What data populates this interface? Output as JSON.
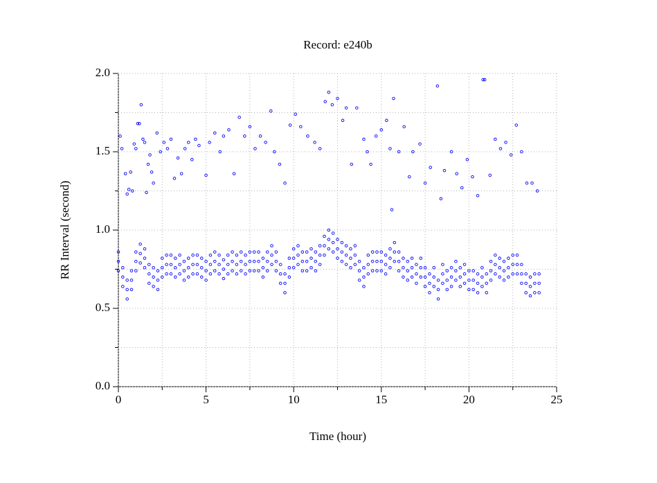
{
  "chart_data": {
    "type": "scatter",
    "title": "Record:  e240b",
    "xlabel": "Time (hour)",
    "ylabel": "RR Interval (second)",
    "xlim": [
      0,
      25
    ],
    "ylim": [
      0,
      2
    ],
    "xticks": [
      0,
      5,
      10,
      15,
      20,
      25
    ],
    "x_minor_ticks": [
      2.5,
      7.5,
      12.5,
      17.5,
      22.5
    ],
    "yticks": [
      {
        "value": 0,
        "label": "0.0"
      },
      {
        "value": 0.5,
        "label": "0.5"
      },
      {
        "value": 1,
        "label": "1.0"
      },
      {
        "value": 1.5,
        "label": "1.5"
      },
      {
        "value": 2,
        "label": "2.0"
      }
    ],
    "y_minor_ticks": [
      0.25,
      0.75,
      1.25,
      1.75
    ],
    "grid": true,
    "x": [
      0,
      0.25,
      0.5,
      0.75,
      1,
      1.25,
      1.5,
      1.75,
      2,
      2.25,
      2.5,
      2.75,
      3,
      3.25,
      3.5,
      3.75,
      4,
      4.25,
      4.5,
      4.75,
      5,
      5.25,
      5.5,
      5.75,
      6,
      6.25,
      6.5,
      6.75,
      7,
      7.25,
      7.5,
      7.75,
      8,
      8.25,
      8.5,
      8.75,
      9,
      9.25,
      9.5,
      9.75,
      10,
      10.25,
      10.5,
      10.75,
      11,
      11.25,
      11.5,
      11.75,
      12,
      12.25,
      12.5,
      12.75,
      13,
      13.25,
      13.5,
      13.75,
      14,
      14.25,
      14.5,
      14.75,
      15,
      15.25,
      15.5,
      15.75,
      16,
      16.25,
      16.5,
      16.75,
      17,
      17.25,
      17.5,
      17.75,
      18,
      18.25,
      18.5,
      18.75,
      19,
      19.25,
      19.5,
      19.75,
      20,
      20.25,
      20.5,
      20.75,
      21,
      21.25,
      21.5,
      21.75,
      22,
      22.25,
      22.5,
      22.75,
      23,
      23.25,
      23.5,
      23.75,
      24
    ],
    "series": [
      {
        "color": "#0000ff",
        "values": [
          0.86,
          0.76,
          0.68,
          0.74,
          0.86,
          0.91,
          0.88,
          0.78,
          0.76,
          0.74,
          0.82,
          0.84,
          0.84,
          0.82,
          0.84,
          0.8,
          0.82,
          0.84,
          0.84,
          0.82,
          0.8,
          0.84,
          0.86,
          0.84,
          0.81,
          0.84,
          0.86,
          0.84,
          0.86,
          0.84,
          0.86,
          0.86,
          0.86,
          0.82,
          0.86,
          0.9,
          0.86,
          0.78,
          0.72,
          0.82,
          0.88,
          0.9,
          0.86,
          0.86,
          0.88,
          0.86,
          0.9,
          0.96,
          1.0,
          0.98,
          0.94,
          0.92,
          0.9,
          0.88,
          0.9,
          0.8,
          0.76,
          0.84,
          0.86,
          0.86,
          0.86,
          0.84,
          0.88,
          0.92,
          0.86,
          0.82,
          0.8,
          0.82,
          0.78,
          0.82,
          0.76,
          0.72,
          0.76,
          0.68,
          0.78,
          0.74,
          0.76,
          0.8,
          0.76,
          0.78,
          0.74,
          0.74,
          0.72,
          0.76,
          0.72,
          0.8,
          0.84,
          0.82,
          0.8,
          0.82,
          0.84,
          0.84,
          0.78,
          0.72,
          0.7,
          0.72,
          0.72
        ]
      },
      {
        "color": "#0000ff",
        "values": [
          0.8,
          0.7,
          0.62,
          0.68,
          0.8,
          0.85,
          0.82,
          0.72,
          0.7,
          0.68,
          0.76,
          0.78,
          0.78,
          0.76,
          0.78,
          0.74,
          0.76,
          0.78,
          0.78,
          0.76,
          0.74,
          0.78,
          0.8,
          0.78,
          0.75,
          0.78,
          0.8,
          0.78,
          0.8,
          0.78,
          0.8,
          0.8,
          0.8,
          0.76,
          0.8,
          0.84,
          0.8,
          0.72,
          0.66,
          0.76,
          0.82,
          0.84,
          0.8,
          0.8,
          0.82,
          0.8,
          0.84,
          0.9,
          0.94,
          0.92,
          0.88,
          0.86,
          0.84,
          0.82,
          0.84,
          0.74,
          0.7,
          0.78,
          0.8,
          0.8,
          0.8,
          0.78,
          0.82,
          0.86,
          0.8,
          0.76,
          0.74,
          0.76,
          0.72,
          0.76,
          0.7,
          0.66,
          0.7,
          0.62,
          0.72,
          0.68,
          0.7,
          0.74,
          0.7,
          0.72,
          0.68,
          0.68,
          0.66,
          0.7,
          0.66,
          0.74,
          0.78,
          0.76,
          0.74,
          0.76,
          0.78,
          0.78,
          0.72,
          0.66,
          0.64,
          0.66,
          0.66
        ]
      },
      {
        "color": "#0000ff",
        "values": [
          0.74,
          0.64,
          0.56,
          0.62,
          0.74,
          0.79,
          0.76,
          0.66,
          0.64,
          0.62,
          0.7,
          0.72,
          0.72,
          0.7,
          0.72,
          0.68,
          0.7,
          0.72,
          0.72,
          0.7,
          0.68,
          0.72,
          0.74,
          0.72,
          0.69,
          0.72,
          0.74,
          0.72,
          0.74,
          0.72,
          0.74,
          0.74,
          0.74,
          0.7,
          0.74,
          0.78,
          0.74,
          0.66,
          0.6,
          0.7,
          0.76,
          0.78,
          0.74,
          0.74,
          0.76,
          0.74,
          0.78,
          0.84,
          0.88,
          0.86,
          0.82,
          0.8,
          0.78,
          0.76,
          0.78,
          0.68,
          0.64,
          0.72,
          0.74,
          0.74,
          0.74,
          0.72,
          0.76,
          0.8,
          0.74,
          0.7,
          0.68,
          0.7,
          0.66,
          0.7,
          0.64,
          0.6,
          0.64,
          0.56,
          0.66,
          0.62,
          0.64,
          0.68,
          0.64,
          0.66,
          0.62,
          0.62,
          0.6,
          0.64,
          0.6,
          0.68,
          0.72,
          0.7,
          0.68,
          0.7,
          0.72,
          0.72,
          0.66,
          0.6,
          0.58,
          0.6,
          0.6
        ]
      },
      {
        "color": "#0000ff",
        "x": [
          0.1,
          0.2,
          0.4,
          0.5,
          0.6,
          0.7,
          0.8,
          0.9,
          1.0,
          1.1,
          1.2,
          1.3,
          1.4,
          1.5,
          1.6,
          1.7,
          1.8,
          1.9,
          2.0,
          2.2,
          2.4,
          2.6,
          2.8,
          3.0,
          3.2,
          3.4,
          3.6,
          3.8,
          4.0,
          4.2,
          4.4,
          4.6,
          5.0,
          5.2,
          5.5,
          5.8,
          6.0,
          6.3,
          6.6,
          6.9,
          7.2,
          7.5,
          7.8,
          8.1,
          8.4,
          8.7,
          8.9,
          9.2,
          9.5,
          9.8,
          10.1,
          10.4,
          10.8,
          11.2,
          11.5,
          11.8,
          12.0,
          12.2,
          12.5,
          12.8,
          13.0,
          13.3,
          13.6,
          14.0,
          14.2,
          14.4,
          14.7,
          15.0,
          15.3,
          15.5,
          15.7,
          15.6,
          16.0,
          16.3,
          16.6,
          16.8,
          17.2,
          17.5,
          17.8,
          18.2,
          18.4,
          18.6,
          19.0,
          19.3,
          19.6,
          19.9,
          20.2,
          20.5,
          20.8,
          20.9,
          21.2,
          21.5,
          21.8,
          22.1,
          22.4,
          22.7,
          23.0,
          23.3,
          23.6,
          23.9
        ],
        "values": [
          1.6,
          1.52,
          1.36,
          1.23,
          1.26,
          1.37,
          1.25,
          1.55,
          1.52,
          1.68,
          1.68,
          1.8,
          1.58,
          1.56,
          1.24,
          1.42,
          1.48,
          1.37,
          1.3,
          1.62,
          1.5,
          1.56,
          1.52,
          1.58,
          1.33,
          1.46,
          1.36,
          1.52,
          1.56,
          1.45,
          1.58,
          1.54,
          1.35,
          1.56,
          1.62,
          1.5,
          1.6,
          1.64,
          1.36,
          1.72,
          1.6,
          1.66,
          1.52,
          1.6,
          1.56,
          1.76,
          1.5,
          1.42,
          1.3,
          1.67,
          1.74,
          1.66,
          1.6,
          1.56,
          1.52,
          1.82,
          1.88,
          1.8,
          1.84,
          1.7,
          1.78,
          1.42,
          1.78,
          1.58,
          1.5,
          1.42,
          1.6,
          1.64,
          1.7,
          1.52,
          1.84,
          1.13,
          1.5,
          1.66,
          1.34,
          1.5,
          1.55,
          1.3,
          1.4,
          1.92,
          1.2,
          1.38,
          1.5,
          1.36,
          1.27,
          1.45,
          1.34,
          1.22,
          1.96,
          1.96,
          1.35,
          1.58,
          1.52,
          1.56,
          1.48,
          1.67,
          1.5,
          1.3,
          1.3,
          1.25
        ]
      }
    ]
  }
}
